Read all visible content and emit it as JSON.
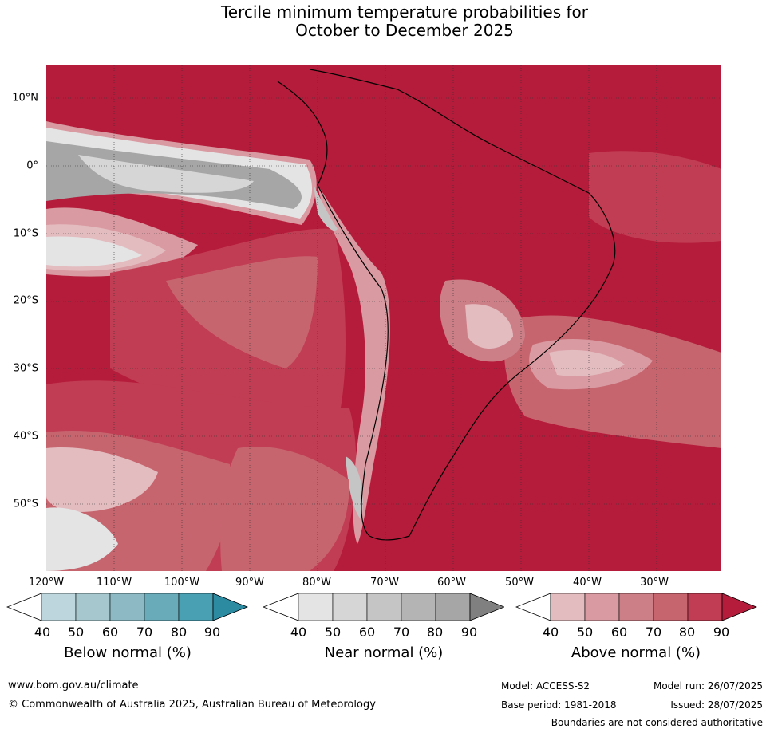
{
  "title_line1": "Tercile minimum temperature probabilities for",
  "title_line2": "October to December 2025",
  "map": {
    "lat_labels": [
      "10°N",
      "0°",
      "10°S",
      "20°S",
      "30°S",
      "40°S",
      "50°S"
    ],
    "lon_labels": [
      "120°W",
      "110°W",
      "100°W",
      "90°W",
      "80°W",
      "70°W",
      "60°W",
      "50°W",
      "40°W",
      "30°W"
    ],
    "colors": {
      "above_90": "#b51c3b",
      "above_80": "#c13d53",
      "above_70": "#c7656f",
      "above_60": "#cc7f87",
      "above_50": "#d99aa1",
      "above_40": "#e3bcc0",
      "near_40": "#e4e4e4",
      "near_50": "#d6d6d6",
      "near_60": "#c5c5c5",
      "near_70": "#b4b4b4",
      "near_80": "#a6a6a6"
    }
  },
  "legends": [
    {
      "label": "Below normal (%)",
      "ticks": [
        "40",
        "50",
        "60",
        "70",
        "80",
        "90"
      ],
      "colors": [
        "#bdd6dd",
        "#a7c7cf",
        "#8db9c4",
        "#6aabba",
        "#4aa0b3",
        "#2c8aa1"
      ]
    },
    {
      "label": "Near normal (%)",
      "ticks": [
        "40",
        "50",
        "60",
        "70",
        "80",
        "90"
      ],
      "colors": [
        "#e4e4e4",
        "#d6d6d6",
        "#c5c5c5",
        "#b4b4b4",
        "#a6a6a6",
        "#808080"
      ]
    },
    {
      "label": "Above normal (%)",
      "ticks": [
        "40",
        "50",
        "60",
        "70",
        "80",
        "90"
      ],
      "colors": [
        "#e3bcc0",
        "#d99aa1",
        "#cc7f87",
        "#c7656f",
        "#c13d53",
        "#b51c3b"
      ]
    }
  ],
  "footer": {
    "website": "www.bom.gov.au/climate",
    "copyright": "© Commonwealth of Australia 2025, Australian Bureau of Meteorology",
    "model": "Model: ACCESS-S2",
    "model_run": "Model run: 26/07/2025",
    "base_period": "Base period: 1981-2018",
    "issued": "Issued: 28/07/2025",
    "disclaimer": "Boundaries are not considered authoritative"
  }
}
